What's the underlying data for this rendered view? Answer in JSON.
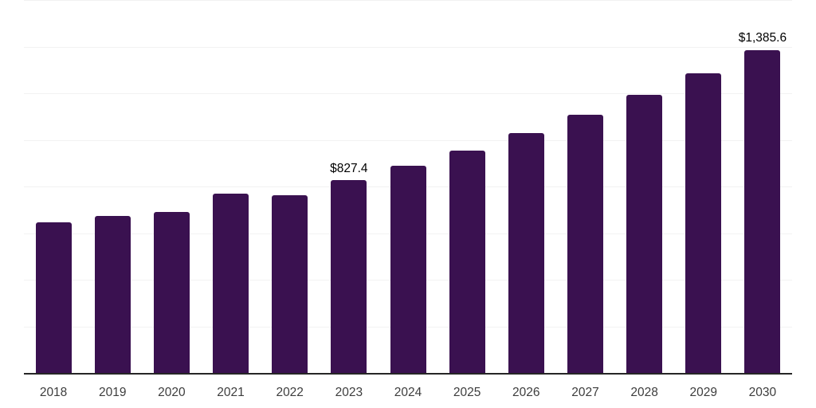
{
  "chart_data": {
    "type": "bar",
    "title": "",
    "xlabel": "",
    "ylabel": "",
    "ylim": [
      0,
      1600
    ],
    "gridline_step": 200,
    "grid": true,
    "legend": "none",
    "y_tick_labels_visible": false,
    "categories": [
      "2018",
      "2019",
      "2020",
      "2021",
      "2022",
      "2023",
      "2024",
      "2025",
      "2026",
      "2027",
      "2028",
      "2029",
      "2030"
    ],
    "values": [
      648,
      675,
      692,
      771,
      761,
      827.4,
      890,
      955,
      1030,
      1109,
      1192,
      1285,
      1385.6
    ],
    "visible_data_labels": [
      {
        "category": "2023",
        "text": "$827.4"
      },
      {
        "category": "2030",
        "text": "$1,385.6"
      }
    ]
  },
  "colors": {
    "bar": "#3A1150",
    "axis": "#262626",
    "gridline": "#F2F2F2",
    "data_label": "#000000",
    "tick_label": "#3D3D3D",
    "background": "#FFFFFF"
  }
}
